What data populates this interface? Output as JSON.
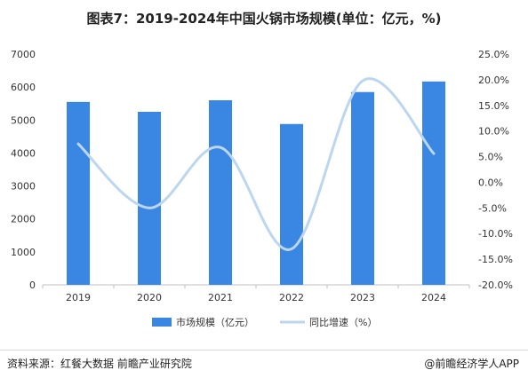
{
  "title": "图表7：2019-2024年中国火锅市场规模(单位：亿元，%)",
  "source": "资料来源：红餐大数据 前瞻产业研究院",
  "brand": "@前瞻经济学人APP",
  "chart_data": {
    "type": "bar",
    "categories": [
      "2019",
      "2020",
      "2021",
      "2022",
      "2023",
      "2024"
    ],
    "series": [
      {
        "name": "市场规模（亿元）",
        "type": "bar",
        "axis": "left",
        "values": [
          5550,
          5250,
          5600,
          4880,
          5850,
          6170
        ],
        "color": "#3a87e3"
      },
      {
        "name": "同比增速（%）",
        "type": "line",
        "axis": "right",
        "values": [
          7.5,
          -5.0,
          6.8,
          -13.0,
          19.8,
          5.6
        ],
        "color": "#bcd6ef"
      }
    ],
    "y_left": {
      "min": 0,
      "max": 7000,
      "ticks": [
        "0",
        "1000",
        "2000",
        "3000",
        "4000",
        "5000",
        "6000",
        "7000"
      ]
    },
    "y_right": {
      "min": -20,
      "max": 25,
      "ticks": [
        "-20.0%",
        "-15.0%",
        "-10.0%",
        "-5.0%",
        "0.0%",
        "5.0%",
        "10.0%",
        "15.0%",
        "20.0%",
        "25.0%"
      ]
    },
    "grid": false,
    "legend_position": "bottom"
  }
}
